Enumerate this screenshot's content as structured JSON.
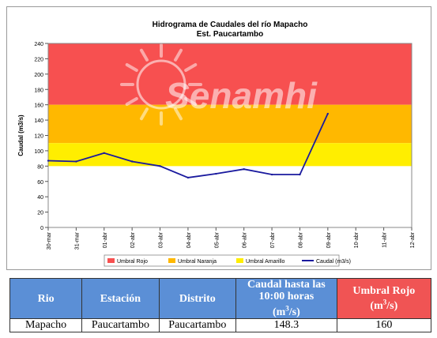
{
  "chart_data": {
    "type": "line",
    "title": "Hidrograma de Caudales del río Mapacho",
    "subtitle": "Est. Paucartambo",
    "ylabel": "Caudal (m3/s)",
    "xlabel": "",
    "ylim": [
      0,
      240
    ],
    "yticks": [
      0,
      20,
      40,
      60,
      80,
      100,
      120,
      140,
      160,
      180,
      200,
      220,
      240
    ],
    "categories": [
      "30-mar",
      "31-mar",
      "01-abr",
      "02-abr",
      "03-abr",
      "04-abr",
      "05-abr",
      "06-abr",
      "07-abr",
      "08-abr",
      "09-abr",
      "10-abr",
      "11-abr",
      "12-abr"
    ],
    "bands": [
      {
        "name": "Umbral Rojo",
        "from": 160,
        "to": 240,
        "color": "#f75050"
      },
      {
        "name": "Umbral Naranja",
        "from": 110,
        "to": 160,
        "color": "#ffb800"
      },
      {
        "name": "Umbral Amarillo",
        "from": 80,
        "to": 110,
        "color": "#ffee00"
      }
    ],
    "series": [
      {
        "name": "Caudal (m3/s)",
        "color": "#1a1a9e",
        "x": [
          "30-mar",
          "31-mar",
          "01-abr",
          "02-abr",
          "03-abr",
          "04-abr",
          "05-abr",
          "06-abr",
          "07-abr",
          "08-abr",
          "09-abr"
        ],
        "values": [
          87,
          86,
          97,
          86,
          80,
          65,
          70,
          76,
          69,
          69,
          148.3
        ]
      }
    ],
    "legend_position": "bottom",
    "grid": false,
    "watermark": "Senamhi"
  },
  "table": {
    "headers": [
      "Rio",
      "Estación",
      "Distrito",
      "Caudal hasta las 10:00 horas",
      "Umbral Rojo"
    ],
    "header_units": [
      "(m",
      "3",
      "/s)"
    ],
    "row": [
      "Mapacho",
      "Paucartambo",
      "Paucartambo",
      "148.3",
      "160"
    ]
  }
}
